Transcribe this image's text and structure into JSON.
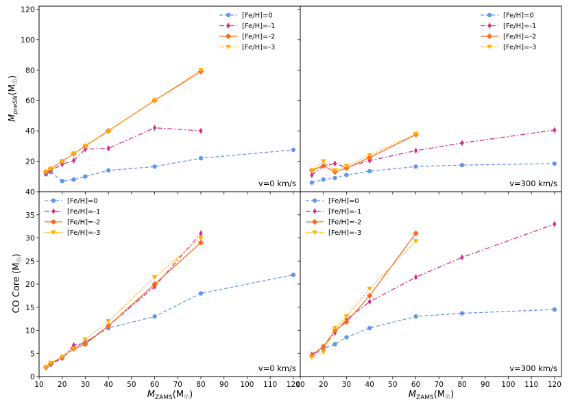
{
  "figure": {
    "ylabel_top": "M",
    "ylabel_top_sub": "preSN",
    "ylabel_top_unit": "(M",
    "ylabel_bottom": "CO Core (M",
    "xlabel": "M",
    "xlabel_sub": "ZAMS",
    "xlabel_unit": "(M",
    "sun_symbol": "☉",
    "close_paren": ")"
  },
  "chart_data": [
    {
      "type": "line",
      "panel": "top-left",
      "annotation": "v=0 km/s",
      "legend_position": "top-right",
      "xlim": [
        10,
        123
      ],
      "ylim": [
        0,
        122
      ],
      "x_ticks": [
        10,
        20,
        30,
        40,
        50,
        60,
        70,
        80,
        90,
        100,
        110,
        120
      ],
      "y_ticks": [
        20,
        40,
        60,
        80,
        100,
        120
      ],
      "series": [
        {
          "name": "[Fe/H]=0",
          "color": "#6495ED",
          "dash": "5,3",
          "marker": "circle",
          "x": [
            13,
            15,
            20,
            25,
            30,
            40,
            60,
            80,
            120
          ],
          "y": [
            11.5,
            13,
            7,
            8,
            10,
            14,
            16.5,
            22,
            27.5
          ]
        },
        {
          "name": "[Fe/H]=-1",
          "color": "#D62A8A",
          "dash": "7,3,2,3",
          "marker": "thin_diamond",
          "x": [
            13,
            15,
            20,
            25,
            30,
            40,
            60,
            80
          ],
          "y": [
            12,
            14,
            18,
            20.5,
            28,
            28.5,
            42,
            40
          ]
        },
        {
          "name": "[Fe/H]=-2",
          "color": "#FF6A1A",
          "dash": "",
          "marker": "diamond",
          "x": [
            13,
            15,
            20,
            25,
            30,
            40,
            60,
            80
          ],
          "y": [
            13,
            15,
            20,
            25,
            30,
            40,
            60,
            79
          ]
        },
        {
          "name": "[Fe/H]=-3",
          "color": "#FFB000",
          "dash": "2,2",
          "marker": "triangle_down",
          "x": [
            13,
            15,
            20,
            25,
            30,
            40,
            60,
            80
          ],
          "y": [
            13,
            15,
            20,
            25,
            30,
            40,
            60,
            80
          ]
        }
      ]
    },
    {
      "type": "line",
      "panel": "top-right",
      "annotation": "v=300 km/s",
      "legend_position": "top-right",
      "xlim": [
        10,
        123
      ],
      "ylim": [
        0,
        122
      ],
      "x_ticks": [
        10,
        20,
        30,
        40,
        50,
        60,
        70,
        80,
        90,
        100,
        110,
        120
      ],
      "y_ticks": [
        20,
        40,
        60,
        80,
        100,
        120
      ],
      "series": [
        {
          "name": "[Fe/H]=0",
          "color": "#6495ED",
          "dash": "5,3",
          "marker": "circle",
          "x": [
            15,
            20,
            25,
            30,
            40,
            60,
            80,
            120
          ],
          "y": [
            6,
            8,
            9,
            11,
            13.5,
            16.5,
            17.5,
            18.5
          ]
        },
        {
          "name": "[Fe/H]=-1",
          "color": "#D62A8A",
          "dash": "7,3,2,3",
          "marker": "thin_diamond",
          "x": [
            15,
            20,
            25,
            30,
            40,
            60,
            80,
            120
          ],
          "y": [
            11,
            17,
            18.5,
            16,
            20.5,
            27,
            32,
            40.5
          ]
        },
        {
          "name": "[Fe/H]=-2",
          "color": "#FF6A1A",
          "dash": "",
          "marker": "diamond",
          "x": [
            15,
            20,
            25,
            30,
            40,
            60
          ],
          "y": [
            14,
            17,
            13,
            15.5,
            22.5,
            37.5
          ]
        },
        {
          "name": "[Fe/H]=-3",
          "color": "#FFB000",
          "dash": "2,2",
          "marker": "triangle_down",
          "x": [
            15,
            20,
            25,
            30,
            40,
            60
          ],
          "y": [
            14,
            20,
            14,
            17,
            24,
            38
          ]
        }
      ]
    },
    {
      "type": "line",
      "panel": "bottom-left",
      "annotation": "v=0 km/s",
      "legend_position": "top-left",
      "xlim": [
        10,
        123
      ],
      "ylim": [
        0,
        40
      ],
      "x_ticks": [
        10,
        20,
        30,
        40,
        50,
        60,
        70,
        80,
        90,
        100,
        110,
        120
      ],
      "y_ticks": [
        0,
        5,
        10,
        15,
        20,
        25,
        30,
        35,
        40
      ],
      "series": [
        {
          "name": "[Fe/H]=0",
          "color": "#6495ED",
          "dash": "5,3",
          "marker": "circle",
          "x": [
            13,
            15,
            20,
            25,
            30,
            40,
            60,
            80,
            120
          ],
          "y": [
            2,
            2.6,
            4,
            6.2,
            7.5,
            10.5,
            13,
            18,
            22
          ]
        },
        {
          "name": "[Fe/H]=-1",
          "color": "#D62A8A",
          "dash": "7,3,2,3",
          "marker": "thin_diamond",
          "x": [
            13,
            15,
            20,
            25,
            30,
            40,
            60,
            80
          ],
          "y": [
            2,
            2.7,
            4,
            6.8,
            7.2,
            11,
            19.5,
            31
          ]
        },
        {
          "name": "[Fe/H]=-2",
          "color": "#FF6A1A",
          "dash": "",
          "marker": "diamond",
          "x": [
            13,
            15,
            20,
            25,
            30,
            40,
            60,
            80
          ],
          "y": [
            2,
            2.8,
            4.2,
            6,
            7,
            11,
            20,
            29
          ]
        },
        {
          "name": "[Fe/H]=-3",
          "color": "#FFB000",
          "dash": "2,2",
          "marker": "triangle_down",
          "x": [
            13,
            15,
            20,
            25,
            30,
            40,
            60,
            80
          ],
          "y": [
            2,
            3,
            4.3,
            6,
            8,
            12,
            21.5,
            30
          ]
        }
      ]
    },
    {
      "type": "line",
      "panel": "bottom-right",
      "annotation": "v=300 km/s",
      "legend_position": "top-left",
      "xlim": [
        10,
        123
      ],
      "ylim": [
        0,
        40
      ],
      "x_ticks": [
        10,
        20,
        30,
        40,
        50,
        60,
        70,
        80,
        90,
        100,
        110,
        120
      ],
      "y_ticks": [
        0,
        5,
        10,
        15,
        20,
        25,
        30,
        35,
        40
      ],
      "series": [
        {
          "name": "[Fe/H]=0",
          "color": "#6495ED",
          "dash": "5,3",
          "marker": "circle",
          "x": [
            15,
            20,
            25,
            30,
            40,
            60,
            80,
            120
          ],
          "y": [
            4.5,
            6,
            7,
            8.5,
            10.5,
            13,
            13.7,
            14.5
          ]
        },
        {
          "name": "[Fe/H]=-1",
          "color": "#D62A8A",
          "dash": "7,3,2,3",
          "marker": "thin_diamond",
          "x": [
            15,
            20,
            25,
            30,
            40,
            60,
            80,
            120
          ],
          "y": [
            4.8,
            6.5,
            9.5,
            12.3,
            16.2,
            21.5,
            25.8,
            33
          ]
        },
        {
          "name": "[Fe/H]=-2",
          "color": "#FF6A1A",
          "dash": "",
          "marker": "diamond",
          "x": [
            15,
            20,
            25,
            30,
            40,
            60
          ],
          "y": [
            4.5,
            6.5,
            10,
            11.8,
            17.5,
            31
          ]
        },
        {
          "name": "[Fe/H]=-3",
          "color": "#FFB000",
          "dash": "2,2",
          "marker": "triangle_down",
          "x": [
            15,
            20,
            25,
            30,
            40,
            60
          ],
          "y": [
            4.2,
            5.3,
            10.5,
            13,
            19,
            29.3
          ]
        }
      ]
    }
  ]
}
